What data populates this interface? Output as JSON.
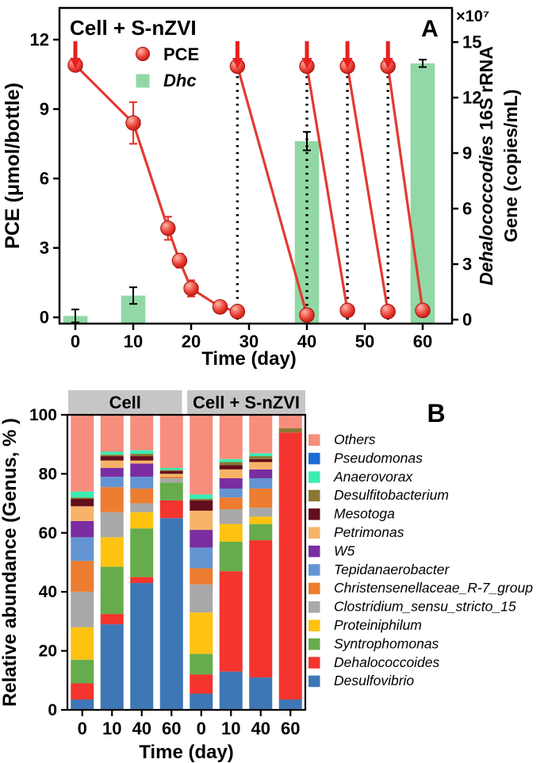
{
  "figure_title": "PCE dechlorination and microbial community figure",
  "chart_data": [
    {
      "type": "line+bar",
      "panel_label": "A",
      "title": "Cell + S-nZVI",
      "xlabel": "Time (day)",
      "x_ticks": [
        0,
        10,
        20,
        30,
        40,
        50,
        60
      ],
      "x_range": [
        -2.74,
        65.07
      ],
      "left_axis": {
        "label": "PCE (μmol/bottle)",
        "ticks": [
          0,
          3,
          6,
          9,
          12
        ],
        "range": [
          -0.27,
          13.37
        ]
      },
      "right_axis": {
        "label_line1_italic": "Dehalococcodies",
        "label_line1_rest": " 16S rRNA",
        "label_line2": "Gene (copies/mL)",
        "scale_note": "×10⁷",
        "ticks": [
          0,
          3,
          6,
          9,
          12,
          15
        ],
        "range": [
          -0.214,
          16.846
        ]
      },
      "legend": [
        {
          "label": "PCE",
          "marker": "sphere",
          "italic": false
        },
        {
          "label": "Dhc",
          "marker": "square",
          "italic": true
        }
      ],
      "line_series": {
        "name": "PCE",
        "color": "#e23b33",
        "marker_edge": "#9e120d",
        "segments": [
          [
            {
              "x": 0,
              "y": 10.9,
              "err": 0.15
            },
            {
              "x": 10,
              "y": 8.4,
              "err": 0.9
            },
            {
              "x": 16,
              "y": 3.85,
              "err": 0.5
            },
            {
              "x": 18,
              "y": 2.45,
              "err": 0.3
            },
            {
              "x": 20,
              "y": 1.25,
              "err": 0.35
            },
            {
              "x": 25,
              "y": 0.45,
              "err": 0.1
            },
            {
              "x": 28,
              "y": 0.25,
              "err": 0.1
            }
          ],
          [
            {
              "x": 28,
              "y": 10.85,
              "err": 0.15
            },
            {
              "x": 40,
              "y": 0.1,
              "err": 0.1
            }
          ],
          [
            {
              "x": 40,
              "y": 10.85,
              "err": 0.15
            },
            {
              "x": 47,
              "y": 0.3,
              "err": 0.15
            }
          ],
          [
            {
              "x": 47,
              "y": 10.85,
              "err": 0.15
            },
            {
              "x": 54,
              "y": 0.25,
              "err": 0.1
            }
          ],
          [
            {
              "x": 54,
              "y": 10.85,
              "err": 0.15
            },
            {
              "x": 60,
              "y": 0.3,
              "err": 0.1
            }
          ]
        ]
      },
      "bar_series": {
        "name": "Dhc",
        "color": "#92d8a5",
        "axis": "right",
        "bar_width_days": 4.2,
        "points": [
          {
            "x": 0,
            "y": 0.2,
            "err": 0.35
          },
          {
            "x": 10,
            "y": 1.3,
            "err": 0.45
          },
          {
            "x": 40,
            "y": 9.65,
            "err": 0.5
          },
          {
            "x": 60,
            "y": 13.85,
            "err": 0.2
          }
        ]
      },
      "arrows": {
        "days": [
          0,
          28,
          40,
          47,
          54
        ],
        "color": "#e8201e"
      },
      "dotted_lines": {
        "days": [
          28,
          40,
          47,
          54
        ],
        "color": "#000000"
      }
    },
    {
      "type": "stacked-bar",
      "panel_label": "B",
      "ylabel": "Relative abundance (Genus, % )",
      "xlabel": "Time (day)",
      "y_ticks": [
        0,
        20,
        40,
        60,
        80,
        100
      ],
      "ylim": [
        0,
        100
      ],
      "group_headers": [
        {
          "label": "Cell",
          "bg": "#c6c6c6"
        },
        {
          "label": "Cell + S-nZVI",
          "bg": "#c6c6c6"
        }
      ],
      "categories": [
        "0",
        "10",
        "40",
        "60",
        "0",
        "10",
        "40",
        "60"
      ],
      "series": [
        {
          "name": "Desulfovibrio",
          "color": "#3e77b6",
          "values": [
            3.5,
            29,
            43,
            65,
            5.5,
            13,
            11,
            3.5
          ]
        },
        {
          "name": "Dehalococcoides",
          "color": "#f3342f",
          "values": [
            5.5,
            3.5,
            2,
            6,
            6.5,
            34,
            46.5,
            90.5
          ]
        },
        {
          "name": "Syntrophomonas",
          "color": "#66ac4c",
          "values": [
            8,
            16,
            16.5,
            6,
            7,
            10,
            5.5,
            0
          ]
        },
        {
          "name": "Proteiniphilum",
          "color": "#fec211",
          "values": [
            11,
            10,
            5.5,
            0,
            14,
            6,
            2.5,
            0
          ]
        },
        {
          "name": "Clostridium_sensu_stricto_15",
          "color": "#a8a8a8",
          "values": [
            12,
            8.5,
            3,
            1.5,
            9.5,
            5,
            3,
            0
          ]
        },
        {
          "name": "Christensenellaceae_R-7_group",
          "color": "#ec7d31",
          "values": [
            10.5,
            8.5,
            5,
            0.5,
            5.5,
            4,
            6.5,
            0
          ]
        },
        {
          "name": "Tepidanaerobacter",
          "color": "#6495d2",
          "values": [
            8,
            3.5,
            4,
            0,
            7,
            3,
            3.5,
            0
          ]
        },
        {
          "name": "W5",
          "color": "#7a2da0",
          "values": [
            5.5,
            3,
            4.5,
            0,
            6,
            3.5,
            3,
            0
          ]
        },
        {
          "name": "Petrimonas",
          "color": "#f6b368",
          "values": [
            5,
            2.5,
            1,
            1,
            6.5,
            3,
            2.5,
            0
          ]
        },
        {
          "name": "Mesotoga",
          "color": "#640e1c",
          "values": [
            2.5,
            1.5,
            1.5,
            1,
            3.5,
            1.5,
            1,
            0
          ]
        },
        {
          "name": "Desulfitobacterium",
          "color": "#8a7834",
          "values": [
            0.5,
            0.5,
            0.8,
            0.3,
            0.5,
            1,
            1,
            1.5
          ]
        },
        {
          "name": "Anaerovorax",
          "color": "#3aedb2",
          "values": [
            2,
            1,
            1.2,
            0.7,
            1.5,
            1,
            1,
            0
          ]
        },
        {
          "name": "Pseudomonas",
          "color": "#1e6bd2",
          "values": [
            0,
            0,
            0,
            0,
            0,
            0,
            0,
            0
          ]
        },
        {
          "name": "Others",
          "color": "#f78d7d",
          "values": [
            26,
            12.5,
            12,
            18,
            27,
            15,
            13,
            4.5
          ]
        }
      ],
      "legend_note": "legend lists series top-to-bottom: Others ... Desulfovibrio"
    }
  ]
}
